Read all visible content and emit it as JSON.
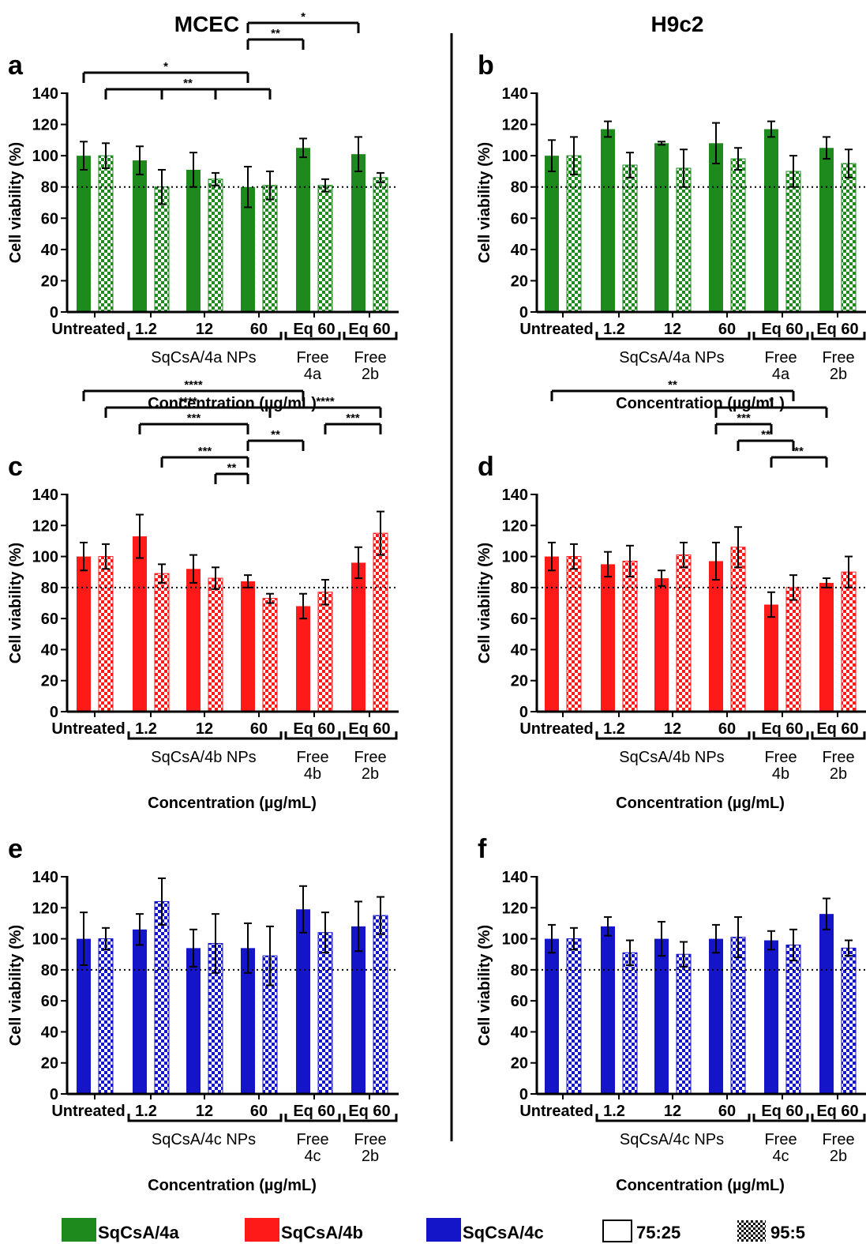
{
  "headers": {
    "left": "MCEC",
    "right": "H9c2"
  },
  "legend": [
    {
      "label": "SqCsA/4a",
      "kind": "swatch",
      "color": "#1e8a1e"
    },
    {
      "label": "SqCsA/4b",
      "kind": "swatch",
      "color": "#ff1a1a"
    },
    {
      "label": "SqCsA/4c",
      "kind": "swatch",
      "color": "#1414c8"
    },
    {
      "label": "75:25",
      "kind": "open"
    },
    {
      "label": "95:5",
      "kind": "checker"
    }
  ],
  "chart_data": [
    {
      "type": "bar",
      "panel": "a",
      "cell": "MCEC",
      "color": "#1e8a1e",
      "categories": [
        "Untreated",
        "1.2",
        "12",
        "60",
        "Eq 60",
        "Eq 60"
      ],
      "group_labels": [
        "SqCsA/4a NPs",
        "Free\n4a",
        "Free\n2b"
      ],
      "xlabel": "Concentration (µg/mL)",
      "ylabel": "Cell viability (%)",
      "ylim": [
        0,
        140
      ],
      "yticks": [
        0,
        20,
        40,
        60,
        80,
        100,
        120,
        140
      ],
      "threshold": 80,
      "series": [
        {
          "name": "75:25",
          "values": [
            100,
            97,
            91,
            80,
            105,
            101
          ],
          "errors": [
            9,
            9,
            11,
            13,
            6,
            11
          ]
        },
        {
          "name": "95:5",
          "values": [
            100,
            80,
            85,
            81,
            81,
            86
          ],
          "errors": [
            8,
            11,
            4,
            9,
            4,
            3
          ]
        }
      ],
      "significance": [
        {
          "text": "*",
          "from": [
            0,
            0
          ],
          "to": [
            3,
            0
          ],
          "y": 1
        },
        {
          "text": "**",
          "from": [
            0,
            1
          ],
          "to": [
            3,
            1
          ],
          "y": 0,
          "mid": [
            1,
            2
          ]
        },
        {
          "text": "**",
          "from": [
            3,
            0
          ],
          "to": [
            4,
            0
          ],
          "y": 3
        },
        {
          "text": "*",
          "from": [
            3,
            0
          ],
          "to": [
            5,
            0
          ],
          "y": 4
        }
      ]
    },
    {
      "type": "bar",
      "panel": "b",
      "cell": "H9c2",
      "color": "#1e8a1e",
      "categories": [
        "Untreated",
        "1.2",
        "12",
        "60",
        "Eq 60",
        "Eq 60"
      ],
      "group_labels": [
        "SqCsA/4a NPs",
        "Free\n4a",
        "Free\n2b"
      ],
      "xlabel": "Concentration (µg/mL)",
      "ylabel": "Cell viability (%)",
      "ylim": [
        0,
        140
      ],
      "yticks": [
        0,
        20,
        40,
        60,
        80,
        100,
        120,
        140
      ],
      "threshold": 80,
      "series": [
        {
          "name": "75:25",
          "values": [
            100,
            117,
            108,
            108,
            117,
            105
          ],
          "errors": [
            10,
            5,
            1,
            13,
            5,
            7
          ]
        },
        {
          "name": "95:5",
          "values": [
            100,
            94,
            92,
            98,
            90,
            95
          ],
          "errors": [
            12,
            8,
            12,
            7,
            10,
            9
          ]
        }
      ],
      "significance": []
    },
    {
      "type": "bar",
      "panel": "c",
      "cell": "MCEC",
      "color": "#ff1a1a",
      "categories": [
        "Untreated",
        "1.2",
        "12",
        "60",
        "Eq 60",
        "Eq 60"
      ],
      "group_labels": [
        "SqCsA/4b NPs",
        "Free\n4b",
        "Free\n2b"
      ],
      "xlabel": "Concentration (µg/mL)",
      "ylabel": "Cell viability (%)",
      "ylim": [
        0,
        140
      ],
      "yticks": [
        0,
        20,
        40,
        60,
        80,
        100,
        120,
        140
      ],
      "threshold": 80,
      "series": [
        {
          "name": "75:25",
          "values": [
            100,
            113,
            92,
            84,
            68,
            96
          ],
          "errors": [
            9,
            14,
            9,
            4,
            8,
            10
          ]
        },
        {
          "name": "95:5",
          "values": [
            100,
            89,
            86,
            73,
            77,
            115
          ],
          "errors": [
            8,
            6,
            7,
            3,
            8,
            14
          ]
        }
      ],
      "significance": [
        {
          "text": "****",
          "from": [
            0,
            0
          ],
          "to": [
            4,
            0
          ],
          "y": 6
        },
        {
          "text": "****",
          "from": [
            0,
            1
          ],
          "to": [
            3,
            1
          ],
          "y": 5
        },
        {
          "text": "****",
          "from": [
            3,
            1
          ],
          "to": [
            5,
            1
          ],
          "y": 5
        },
        {
          "text": "***",
          "from": [
            1,
            0
          ],
          "to": [
            3,
            0
          ],
          "y": 4
        },
        {
          "text": "***",
          "from": [
            4,
            1
          ],
          "to": [
            5,
            1
          ],
          "y": 4
        },
        {
          "text": "**",
          "from": [
            3,
            0
          ],
          "to": [
            4,
            0
          ],
          "y": 3
        },
        {
          "text": "***",
          "from": [
            1,
            1
          ],
          "to": [
            3,
            0
          ],
          "y": 2
        },
        {
          "text": "**",
          "from": [
            2,
            1
          ],
          "to": [
            3,
            0
          ],
          "y": 1
        }
      ]
    },
    {
      "type": "bar",
      "panel": "d",
      "cell": "H9c2",
      "color": "#ff1a1a",
      "categories": [
        "Untreated",
        "1.2",
        "12",
        "60",
        "Eq 60",
        "Eq 60"
      ],
      "group_labels": [
        "SqCsA/4b NPs",
        "Free\n4b",
        "Free\n2b"
      ],
      "xlabel": "Concentration (µg/mL)",
      "ylabel": "Cell viability (%)",
      "ylim": [
        0,
        140
      ],
      "yticks": [
        0,
        20,
        40,
        60,
        80,
        100,
        120,
        140
      ],
      "threshold": 80,
      "series": [
        {
          "name": "75:25",
          "values": [
            100,
            95,
            86,
            97,
            69,
            83
          ],
          "errors": [
            9,
            8,
            5,
            12,
            8,
            3
          ]
        },
        {
          "name": "95:5",
          "values": [
            100,
            97,
            101,
            106,
            80,
            90
          ],
          "errors": [
            8,
            10,
            8,
            13,
            8,
            10
          ]
        }
      ],
      "significance": [
        {
          "text": "**",
          "from": [
            0,
            0
          ],
          "to": [
            4,
            1
          ],
          "y": 6
        },
        {
          "text": "*",
          "from": [
            3,
            0
          ],
          "to": [
            5,
            0
          ],
          "y": 5
        },
        {
          "text": "***",
          "from": [
            3,
            0
          ],
          "to": [
            4,
            0
          ],
          "y": 4
        },
        {
          "text": "**",
          "from": [
            3,
            1
          ],
          "to": [
            4,
            1
          ],
          "y": 3
        },
        {
          "text": "**",
          "from": [
            4,
            0
          ],
          "to": [
            5,
            0
          ],
          "y": 2
        }
      ]
    },
    {
      "type": "bar",
      "panel": "e",
      "cell": "MCEC",
      "color": "#1414c8",
      "categories": [
        "Untreated",
        "1.2",
        "12",
        "60",
        "Eq 60",
        "Eq 60"
      ],
      "group_labels": [
        "SqCsA/4c NPs",
        "Free\n4c",
        "Free\n2b"
      ],
      "xlabel": "Concentration (µg/mL)",
      "ylabel": "Cell viability (%)",
      "ylim": [
        0,
        140
      ],
      "yticks": [
        0,
        20,
        40,
        60,
        80,
        100,
        120,
        140
      ],
      "threshold": 80,
      "series": [
        {
          "name": "75:25",
          "values": [
            100,
            106,
            94,
            94,
            119,
            108
          ],
          "errors": [
            17,
            10,
            12,
            16,
            15,
            16
          ]
        },
        {
          "name": "95:5",
          "values": [
            100,
            124,
            97,
            89,
            104,
            115
          ],
          "errors": [
            7,
            15,
            19,
            19,
            13,
            12
          ]
        }
      ],
      "significance": []
    },
    {
      "type": "bar",
      "panel": "f",
      "cell": "H9c2",
      "color": "#1414c8",
      "categories": [
        "Untreated",
        "1.2",
        "12",
        "60",
        "Eq 60",
        "Eq 60"
      ],
      "group_labels": [
        "SqCsA/4c NPs",
        "Free\n4c",
        "Free\n2b"
      ],
      "xlabel": "Concentration (µg/mL)",
      "ylabel": "Cell viability (%)",
      "ylim": [
        0,
        140
      ],
      "yticks": [
        0,
        20,
        40,
        60,
        80,
        100,
        120,
        140
      ],
      "threshold": 80,
      "series": [
        {
          "name": "75:25",
          "values": [
            100,
            108,
            100,
            100,
            99,
            116
          ],
          "errors": [
            9,
            6,
            11,
            9,
            6,
            10
          ]
        },
        {
          "name": "95:5",
          "values": [
            100,
            91,
            90,
            101,
            96,
            94
          ],
          "errors": [
            7,
            8,
            8,
            13,
            10,
            5
          ]
        }
      ],
      "significance": []
    }
  ]
}
